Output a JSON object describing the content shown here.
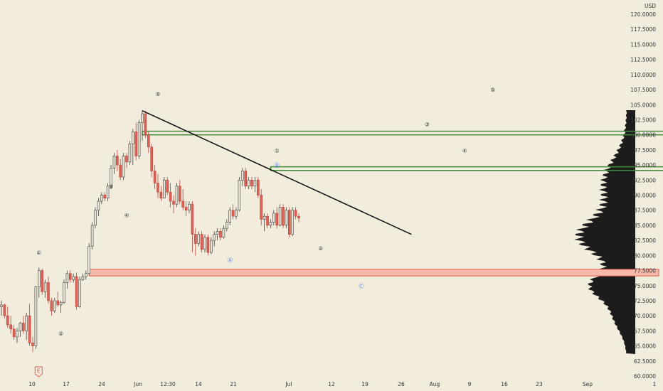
{
  "currency": "USD",
  "colors": {
    "background": "#f2ecdc",
    "bull": "#6b6b6b",
    "bear": "#e06055",
    "trendline": "#111111",
    "zone_green": "#3f8a3a",
    "zone_red": "#e06055",
    "wave_blue": "#4a78d6",
    "wave_dark": "#222222",
    "profile": "#111111"
  },
  "chart_data": {
    "type": "candlestick",
    "yaxis": {
      "position": "right",
      "range": [
        60,
        121
      ],
      "ticks": [
        "120.0000",
        "117.5000",
        "115.0000",
        "112.5000",
        "110.0000",
        "107.5000",
        "105.0000",
        "102.5000",
        "100.0000",
        "97.5000",
        "95.0000",
        "92.5000",
        "90.0000",
        "87.5000",
        "85.0000",
        "82.5000",
        "80.0000",
        "77.5000",
        "75.0000",
        "72.5000",
        "70.0000",
        "67.5000",
        "65.0000",
        "62.5000",
        "60.0000"
      ]
    },
    "xaxis": {
      "ticks": [
        "10",
        "17",
        "24",
        "Jun",
        "12:30",
        "14",
        "21",
        "Jul",
        "12",
        "19",
        "26",
        "Aug",
        "9",
        "16",
        "23",
        "Sep",
        "1"
      ]
    },
    "candles": [
      [
        71.5,
        72.5,
        70,
        71.8
      ],
      [
        71.8,
        72,
        69.5,
        70
      ],
      [
        70,
        71.5,
        68,
        68.5
      ],
      [
        68.5,
        70,
        67,
        67.8
      ],
      [
        67.8,
        68.5,
        66,
        66.5
      ],
      [
        66.5,
        68,
        65.5,
        67.5
      ],
      [
        67.5,
        69,
        66.5,
        68.8
      ],
      [
        68.8,
        70,
        67,
        67.5
      ],
      [
        67.5,
        70.5,
        66,
        70
      ],
      [
        70,
        72,
        65,
        65.5
      ],
      [
        65.5,
        66.5,
        64,
        65
      ],
      [
        65,
        75,
        64.5,
        74.8
      ],
      [
        74.8,
        78,
        73,
        77.5
      ],
      [
        77.5,
        77.8,
        73.5,
        74
      ],
      [
        74,
        76,
        73,
        75.5
      ],
      [
        75.5,
        76.5,
        72,
        72.5
      ],
      [
        72.5,
        73,
        70,
        70.8
      ],
      [
        70.8,
        73,
        70.5,
        72.5
      ],
      [
        72.5,
        74,
        71.5,
        71.8
      ],
      [
        71.8,
        72.5,
        70.5,
        72.2
      ],
      [
        72.2,
        76,
        72,
        75.5
      ],
      [
        75.5,
        77.5,
        74.5,
        77
      ],
      [
        77,
        77.5,
        75.5,
        76
      ],
      [
        76,
        77,
        75.5,
        76.5
      ],
      [
        76.5,
        77.2,
        71,
        71.5
      ],
      [
        71.5,
        76.5,
        71.3,
        76
      ],
      [
        76,
        77,
        75.8,
        76.5
      ],
      [
        76.5,
        77.5,
        76,
        77
      ],
      [
        77,
        82,
        76.8,
        81.5
      ],
      [
        81.5,
        85.5,
        81,
        85
      ],
      [
        85,
        88,
        84.5,
        87.5
      ],
      [
        87.5,
        89.5,
        86.5,
        89
      ],
      [
        89,
        90.5,
        88.5,
        90
      ],
      [
        90,
        90.5,
        89,
        89.5
      ],
      [
        89.5,
        92,
        89,
        91.5
      ],
      [
        91.5,
        95,
        91,
        94.5
      ],
      [
        94.5,
        97,
        93.5,
        96.5
      ],
      [
        96.5,
        97.5,
        94,
        95
      ],
      [
        95,
        96,
        92.5,
        93
      ],
      [
        93,
        97,
        92.5,
        96.5
      ],
      [
        96.5,
        97,
        94.5,
        95.5
      ],
      [
        95.5,
        99,
        95,
        98.5
      ],
      [
        98.5,
        101,
        95,
        100.5
      ],
      [
        100.5,
        102,
        95.8,
        96.5
      ],
      [
        96.5,
        102.5,
        96,
        102
      ],
      [
        102,
        104,
        99,
        103.5
      ],
      [
        103.5,
        104,
        99.5,
        100
      ],
      [
        100,
        100.5,
        97,
        98
      ],
      [
        98,
        98.5,
        93,
        94
      ],
      [
        94,
        95,
        91,
        92
      ],
      [
        92,
        93.5,
        89.5,
        90.5
      ],
      [
        90.5,
        91.5,
        89,
        89.5
      ],
      [
        89.5,
        93,
        89.5,
        92.5
      ],
      [
        92.5,
        93,
        90,
        90.5
      ],
      [
        90.5,
        92,
        88,
        89
      ],
      [
        89,
        90,
        87,
        88.5
      ],
      [
        88.5,
        92,
        88,
        91.5
      ],
      [
        91.5,
        92.5,
        88.5,
        89
      ],
      [
        89,
        91,
        87.5,
        88
      ],
      [
        88,
        89,
        86.5,
        87.5
      ],
      [
        87.5,
        89,
        87,
        88.5
      ],
      [
        88.5,
        89,
        80.5,
        83.5
      ],
      [
        83.5,
        84.5,
        80,
        82
      ],
      [
        82,
        84,
        81.5,
        83.5
      ],
      [
        83.5,
        84,
        80.5,
        81
      ],
      [
        81,
        83.5,
        80.5,
        83
      ],
      [
        83,
        83.5,
        80,
        80.5
      ],
      [
        80.5,
        83,
        80.2,
        82.5
      ],
      [
        82.5,
        84,
        81.5,
        83.5
      ],
      [
        83.5,
        84.5,
        82.5,
        84
      ],
      [
        84,
        84.5,
        82.5,
        83
      ],
      [
        83,
        85,
        82.8,
        84.5
      ],
      [
        84.5,
        86,
        84,
        85.5
      ],
      [
        85.5,
        88,
        85,
        87.5
      ],
      [
        87.5,
        88.5,
        86,
        86.5
      ],
      [
        86.5,
        88,
        86,
        87.5
      ],
      [
        87.5,
        93,
        87.3,
        92.5
      ],
      [
        92.5,
        94.5,
        91.5,
        94
      ],
      [
        94,
        94.5,
        91,
        91.5
      ],
      [
        91.5,
        93,
        91,
        92.5
      ],
      [
        92.5,
        93,
        91,
        91.5
      ],
      [
        91.5,
        93,
        90.5,
        92.5
      ],
      [
        92.5,
        93,
        89.5,
        90
      ],
      [
        90,
        91,
        85,
        86
      ],
      [
        86,
        87,
        84,
        86.5
      ],
      [
        86.5,
        87,
        84.5,
        85
      ],
      [
        85,
        86,
        84.5,
        85.5
      ],
      [
        85.5,
        87.5,
        85,
        87
      ],
      [
        87,
        88,
        84.5,
        85
      ],
      [
        85,
        88.5,
        84.8,
        88
      ],
      [
        88,
        88.5,
        84.5,
        85
      ],
      [
        85,
        88,
        84.5,
        87.5
      ],
      [
        87.5,
        88,
        83,
        83.5
      ],
      [
        83.5,
        88,
        83.2,
        87.5
      ],
      [
        87.5,
        88,
        86,
        86.5
      ],
      [
        86.5,
        87,
        85.5,
        86.2
      ]
    ],
    "trendline": {
      "from": {
        "index": 45,
        "price": 104
      },
      "to": {
        "index": 131,
        "price": 83.5
      }
    },
    "zones": [
      {
        "color": "green",
        "top": 100.6,
        "bottom": 100.0,
        "from_index": 45,
        "to_index": 230
      },
      {
        "color": "green",
        "top": 94.7,
        "bottom": 94.1,
        "from_index": 86,
        "to_index": 221
      },
      {
        "color": "red",
        "top": 77.7,
        "bottom": 76.6,
        "from_index": 28,
        "to_index": 210
      }
    ],
    "wave_labels": [
      {
        "text": "①",
        "index": 12,
        "price": 80.5,
        "color": "dark"
      },
      {
        "text": "②",
        "index": 19,
        "price": 67.1,
        "color": "dark"
      },
      {
        "text": "③",
        "index": 35,
        "price": 91.5,
        "color": "dark"
      },
      {
        "text": "④",
        "index": 40,
        "price": 86.7,
        "color": "dark"
      },
      {
        "text": "⑤",
        "index": 50,
        "price": 106.8,
        "color": "dark"
      },
      {
        "text": "Ⓐ",
        "index": 73,
        "price": 79.3,
        "color": "blue"
      },
      {
        "text": "①",
        "index": 88,
        "price": 97.4,
        "color": "dark"
      },
      {
        "text": "Ⓑ",
        "index": 88,
        "price": 95.0,
        "color": "blue"
      },
      {
        "text": "②",
        "index": 102,
        "price": 81.2,
        "color": "dark"
      },
      {
        "text": "Ⓒ",
        "index": 115,
        "price": 75.0,
        "color": "blue"
      },
      {
        "text": "③",
        "index": 136,
        "price": 101.8,
        "color": "dark"
      },
      {
        "text": "④",
        "index": 148,
        "price": 97.4,
        "color": "dark"
      },
      {
        "text": "⑤",
        "index": 157,
        "price": 107.5,
        "color": "dark"
      }
    ],
    "earnings_marker": {
      "text": "E",
      "index": 12
    }
  }
}
